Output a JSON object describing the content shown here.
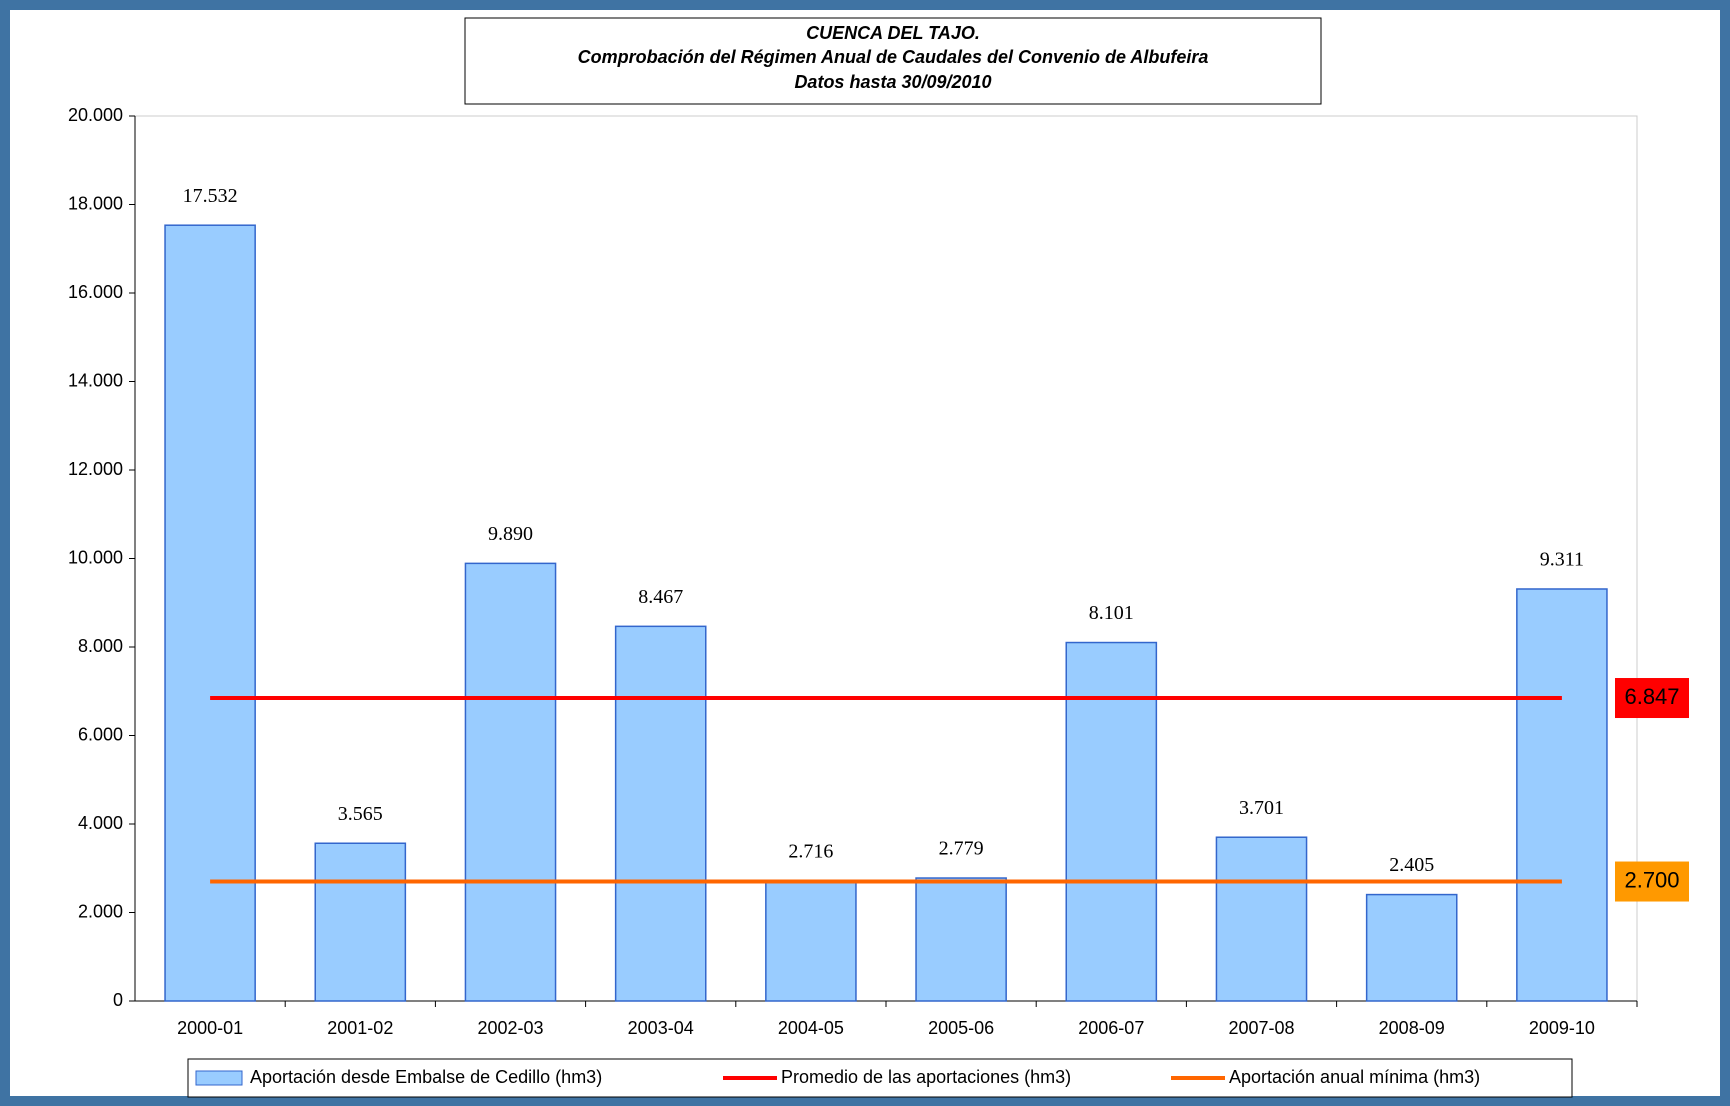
{
  "chart_data": {
    "type": "bar",
    "title_lines": [
      "CUENCA DEL TAJO.",
      "Comprobación del Régimen Anual de Caudales del Convenio de Albufeira",
      "Datos hasta 30/09/2010"
    ],
    "categories": [
      "2000-01",
      "2001-02",
      "2002-03",
      "2003-04",
      "2004-05",
      "2005-06",
      "2006-07",
      "2007-08",
      "2008-09",
      "2009-10"
    ],
    "series": [
      {
        "name": "Aportación desde Embalse de Cedillo (hm3)",
        "type": "bar",
        "color": "#99ccff",
        "stroke": "#3366cc",
        "values": [
          17532,
          3565,
          9890,
          8467,
          2716,
          2779,
          8101,
          3701,
          2405,
          9311
        ],
        "value_labels": [
          "17.532",
          "3.565",
          "9.890",
          "8.467",
          "2.716",
          "2.779",
          "8.101",
          "3.701",
          "2.405",
          "9.311"
        ]
      },
      {
        "name": "Promedio de las aportaciones (hm3)",
        "type": "line",
        "color": "#ff0000",
        "values": [
          6847,
          6847,
          6847,
          6847,
          6847,
          6847,
          6847,
          6847,
          6847,
          6847
        ],
        "value_labels": [
          null,
          null,
          null,
          null,
          null,
          null,
          null,
          null,
          null,
          "6.847"
        ]
      },
      {
        "name": "Aportación anual mínima (hm3)",
        "type": "line",
        "color": "#ff6600",
        "label_fill": "#ff9900",
        "values": [
          2700,
          2700,
          2700,
          2700,
          2700,
          2700,
          2700,
          2700,
          2700,
          2700
        ],
        "value_labels": [
          null,
          null,
          null,
          null,
          null,
          null,
          null,
          null,
          null,
          "2.700"
        ]
      }
    ],
    "ylim": [
      0,
      20000
    ],
    "yticks": [
      0,
      {
        "value": 2000,
        "label": "2.000"
      },
      {
        "value": 4000,
        "label": "4.000"
      },
      {
        "value": 6000,
        "label": "6.000"
      },
      {
        "value": 8000,
        "label": "8.000"
      },
      {
        "value": 10000,
        "label": "10.000"
      },
      {
        "value": 12000,
        "label": "12.000"
      },
      {
        "value": 14000,
        "label": "14.000"
      },
      {
        "value": 16000,
        "label": "16.000"
      },
      {
        "value": 18000,
        "label": "18.000"
      },
      {
        "value": 20000,
        "label": "20.000"
      }
    ],
    "grid": false,
    "legend": "bottom"
  }
}
